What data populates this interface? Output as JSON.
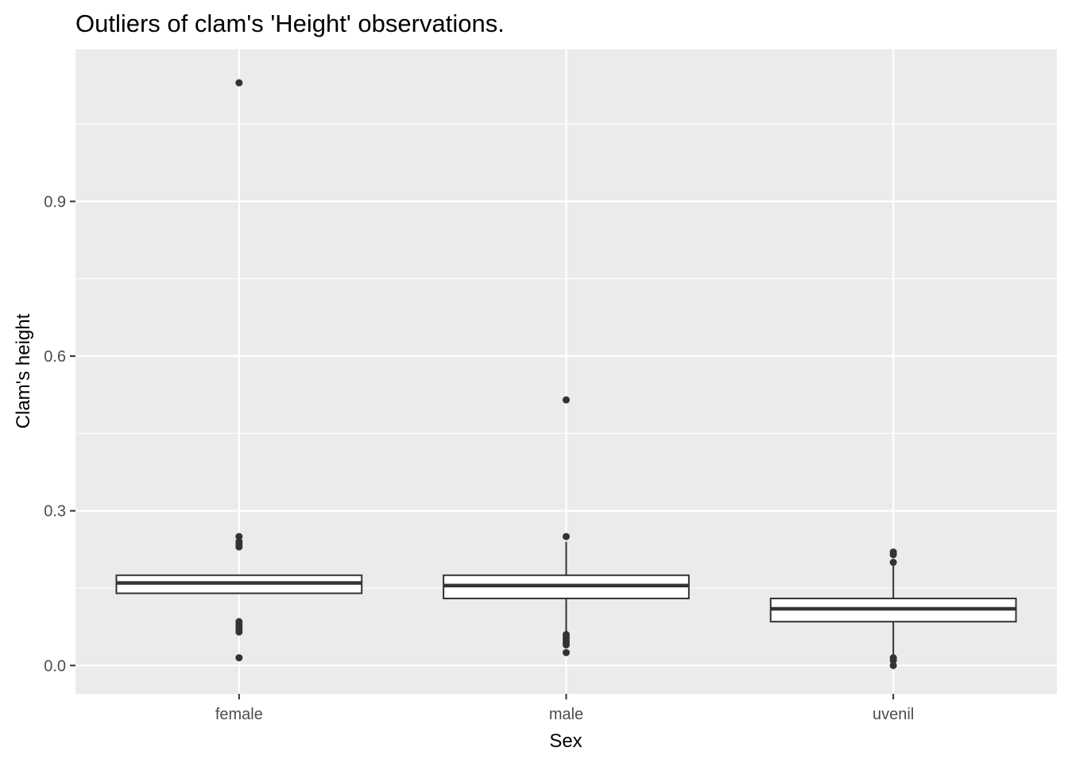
{
  "chart_data": {
    "type": "boxplot",
    "title": "Outliers of clam's 'Height' observations.",
    "xlabel": "Sex",
    "ylabel": "Clam's height",
    "categories": [
      "female",
      "male",
      "uvenil"
    ],
    "ylim": [
      -0.055,
      1.195
    ],
    "yticks": [
      0.0,
      0.3,
      0.6,
      0.9
    ],
    "ytick_labels": [
      "0.0",
      "0.3",
      "0.6",
      "0.9"
    ],
    "grid": true,
    "legend": "none",
    "colors": {
      "panel": "#ebebeb",
      "grid": "#ffffff",
      "box_fill": "#ffffff",
      "box_line": "#333333",
      "outlier": "#333333"
    },
    "boxes": [
      {
        "category": "female",
        "whisker_low": 0.14,
        "q1": 0.14,
        "median": 0.16,
        "q3": 0.175,
        "whisker_high": 0.175,
        "outliers": [
          1.13,
          0.25,
          0.24,
          0.235,
          0.23,
          0.085,
          0.08,
          0.075,
          0.07,
          0.065,
          0.015
        ]
      },
      {
        "category": "male",
        "whisker_low": 0.065,
        "q1": 0.13,
        "median": 0.155,
        "q3": 0.175,
        "whisker_high": 0.24,
        "outliers": [
          0.515,
          0.25,
          0.06,
          0.055,
          0.05,
          0.045,
          0.04,
          0.025
        ]
      },
      {
        "category": "uvenil",
        "whisker_low": 0.02,
        "q1": 0.085,
        "median": 0.11,
        "q3": 0.13,
        "whisker_high": 0.195,
        "outliers": [
          0.22,
          0.215,
          0.2,
          0.015,
          0.01,
          0.0
        ]
      }
    ]
  }
}
